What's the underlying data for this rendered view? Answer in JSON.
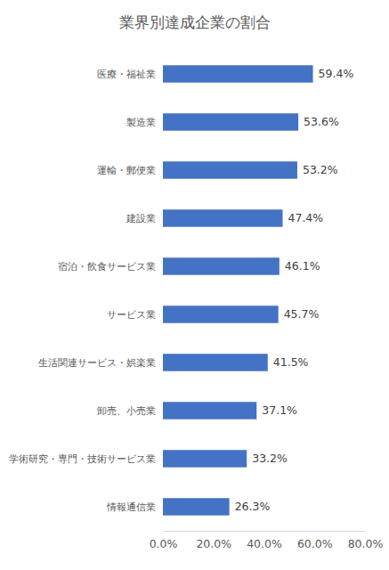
{
  "chart_data": {
    "type": "bar",
    "orientation": "horizontal",
    "title": "業界別達成企業の割合",
    "categories": [
      "医療・福祉業",
      "製造業",
      "運輸・郵便業",
      "建設業",
      "宿泊・飲食サービス業",
      "サービス業",
      "生活関連サービス・娯楽業",
      "卸売、小売業",
      "学術研究・専門・技術サービス業",
      "情報通信業"
    ],
    "values": [
      59.4,
      53.6,
      53.2,
      47.4,
      46.1,
      45.7,
      41.5,
      37.1,
      33.2,
      26.3
    ],
    "value_labels": [
      "59.4%",
      "53.6%",
      "53.2%",
      "47.4%",
      "46.1%",
      "45.7%",
      "41.5%",
      "37.1%",
      "33.2%",
      "26.3%"
    ],
    "color": "#4472c4",
    "xlim": [
      0,
      80
    ],
    "xticks": [
      {
        "value": 0,
        "label": "0.0%"
      },
      {
        "value": 20,
        "label": "20.0%"
      },
      {
        "value": 40,
        "label": "40.0%"
      },
      {
        "value": 60,
        "label": "60.0%"
      },
      {
        "value": 80,
        "label": "80.0%"
      }
    ],
    "grid": false,
    "data_labels": true
  }
}
